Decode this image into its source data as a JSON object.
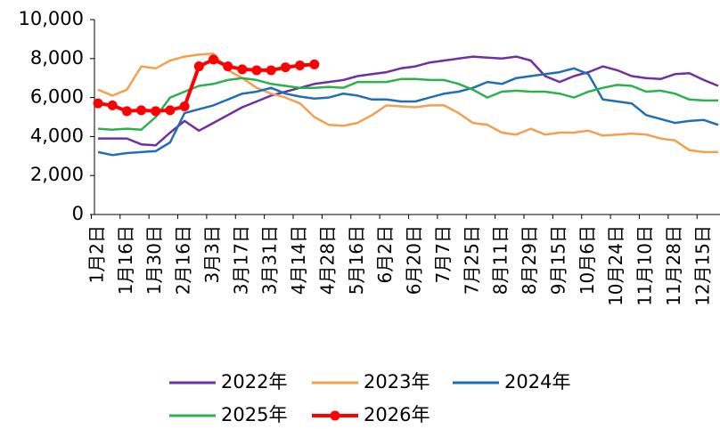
{
  "chart_data": {
    "type": "line",
    "categories": [
      "1月2日",
      null,
      "1月16日",
      null,
      "1月30日",
      null,
      "2月16日",
      null,
      "3月3日",
      null,
      "3月17日",
      null,
      "3月31日",
      null,
      "4月14日",
      null,
      "4月28日",
      null,
      "5月16日",
      null,
      "6月2日",
      null,
      "6月20日",
      null,
      "7月7日",
      null,
      "7月25日",
      null,
      "8月11日",
      null,
      "8月29日",
      null,
      "9月15日",
      null,
      "10月6日",
      null,
      "10月24日",
      null,
      "11月10日",
      null,
      "11月28日",
      null,
      "12月15日",
      null
    ],
    "series": [
      {
        "name": "2022年",
        "color": "#7030a0",
        "values": [
          3900,
          3900,
          3900,
          3600,
          3550,
          4200,
          4800,
          4300,
          4700,
          5100,
          5500,
          5800,
          6100,
          6300,
          6500,
          6700,
          6800,
          6900,
          7100,
          7200,
          7300,
          7500,
          7600,
          7800,
          7900,
          8000,
          8100,
          8050,
          8000,
          8100,
          7900,
          7100,
          6800,
          7100,
          7300,
          7600,
          7400,
          7100,
          7000,
          6950,
          7200,
          7250,
          6900,
          6600
        ]
      },
      {
        "name": "2023年",
        "color": "#f4a04c",
        "values": [
          6400,
          6100,
          6400,
          7600,
          7500,
          7900,
          8100,
          8200,
          8250,
          7400,
          7000,
          6500,
          6200,
          6000,
          5700,
          5000,
          4600,
          4550,
          4700,
          5100,
          5600,
          5550,
          5500,
          5600,
          5600,
          5200,
          4700,
          4600,
          4200,
          4100,
          4400,
          4100,
          4200,
          4200,
          4300,
          4050,
          4100,
          4150,
          4100,
          3900,
          3800,
          3300,
          3200,
          3200
        ]
      },
      {
        "name": "2024年",
        "color": "#1f6fb5",
        "values": [
          3200,
          3050,
          3150,
          3200,
          3250,
          3700,
          5200,
          5400,
          5600,
          5900,
          6200,
          6300,
          6500,
          6200,
          6050,
          5950,
          6000,
          6200,
          6100,
          5900,
          5900,
          5800,
          5800,
          6000,
          6200,
          6300,
          6500,
          6800,
          6700,
          7000,
          7100,
          7200,
          7300,
          7500,
          7200,
          5900,
          5800,
          5700,
          5100,
          4900,
          4700,
          4800,
          4850,
          4600
        ]
      },
      {
        "name": "2025年",
        "color": "#2bb24c",
        "values": [
          4400,
          4350,
          4400,
          4350,
          5000,
          6000,
          6300,
          6600,
          6700,
          6900,
          7000,
          6900,
          6700,
          6600,
          6500,
          6500,
          6550,
          6500,
          6800,
          6800,
          6800,
          6950,
          6950,
          6900,
          6900,
          6700,
          6400,
          6000,
          6300,
          6350,
          6300,
          6300,
          6200,
          6000,
          6300,
          6500,
          6650,
          6600,
          6300,
          6350,
          6200,
          5900,
          5850,
          5850
        ]
      },
      {
        "name": "2026年",
        "color": "#ff0000",
        "markers": true,
        "values": [
          5700,
          5600,
          5300,
          5350,
          5300,
          5350,
          5550,
          7600,
          7950,
          7600,
          7450,
          7400,
          7400,
          7550,
          7650,
          7700,
          null,
          null,
          null,
          null,
          null,
          null,
          null,
          null,
          null,
          null,
          null,
          null,
          null,
          null,
          null,
          null,
          null,
          null,
          null,
          null,
          null,
          null,
          null,
          null,
          null,
          null,
          null,
          null
        ]
      }
    ],
    "ylim": [
      0,
      10000
    ],
    "yticks": [
      0,
      {
        "value": 2000,
        "label": "2,000"
      },
      {
        "value": 4000,
        "label": "4,000"
      },
      {
        "value": 6000,
        "label": "6,000"
      },
      {
        "value": 8000,
        "label": "8,000"
      },
      {
        "value": 10000,
        "label": "10,000"
      }
    ],
    "legend": "bottom"
  }
}
